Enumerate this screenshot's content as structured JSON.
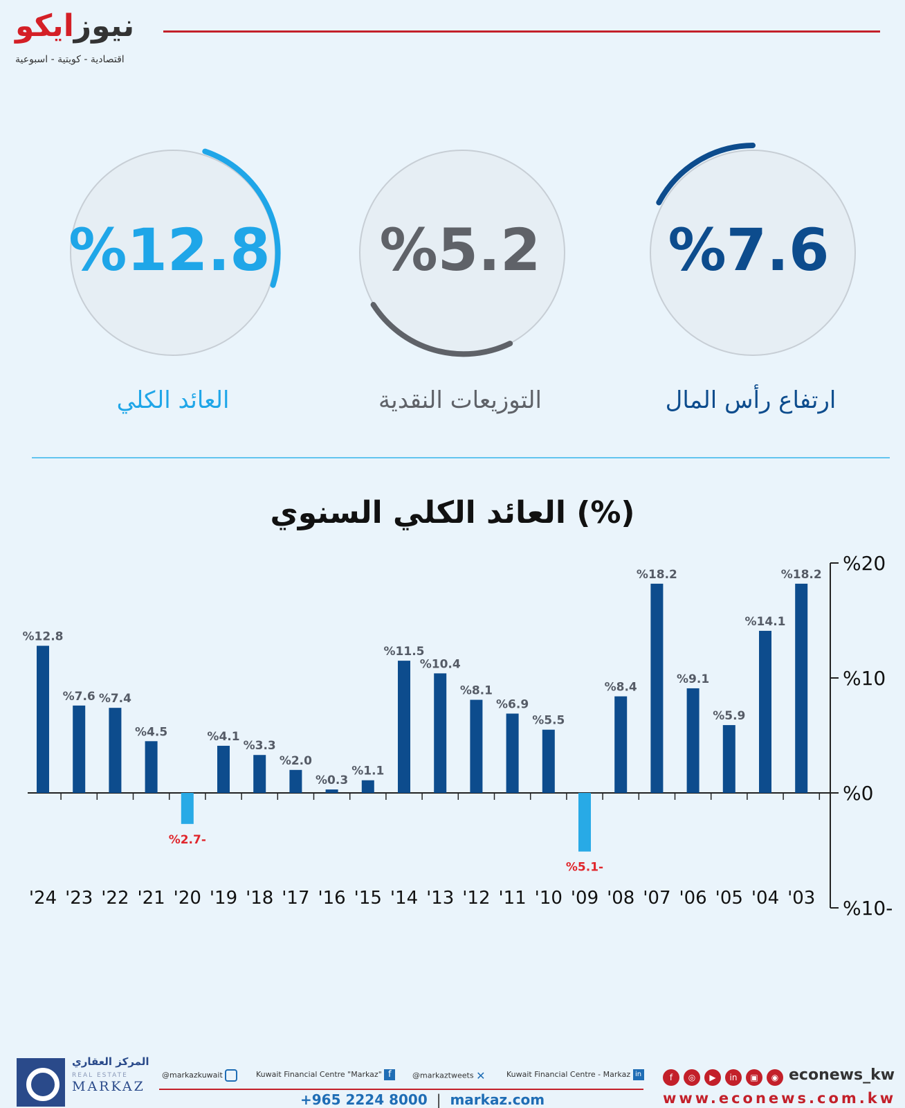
{
  "header": {
    "logo_part1": "ايكو",
    "logo_part2": "نيوز",
    "tagline": "اقتصادية - كويتية - اسبوعية"
  },
  "rings": [
    {
      "value_text": "%12.8",
      "label": "العائد الكلي",
      "color": "#1fa6e8",
      "fraction": 0.128
    },
    {
      "value_text": "%5.2",
      "label": "التوزيعات النقدية",
      "color": "#5f6268",
      "fraction": 0.052
    },
    {
      "value_text": "%7.6",
      "label": "ارتفاع رأس المال",
      "color": "#0d4c8d",
      "fraction": 0.076
    }
  ],
  "chart_data": {
    "type": "bar",
    "title": "العائد الكلي السنوي (%)",
    "categories": [
      "'24",
      "'23",
      "'22",
      "'21",
      "'20",
      "'19",
      "'18",
      "'17",
      "'16",
      "'15",
      "'14",
      "'13",
      "'12",
      "'11",
      "'10",
      "'09",
      "'08",
      "'07",
      "'06",
      "'05",
      "'04",
      "'03"
    ],
    "values": [
      12.8,
      7.6,
      7.4,
      4.5,
      -2.7,
      4.1,
      3.3,
      2.0,
      0.3,
      1.1,
      11.5,
      10.4,
      8.1,
      6.9,
      5.5,
      -5.1,
      8.4,
      18.2,
      9.1,
      5.9,
      14.1,
      18.2
    ],
    "data_labels": [
      "%12.8",
      "%7.6",
      "%7.4",
      "%4.5",
      "%2.7-",
      "%4.1",
      "%3.3",
      "%2.0",
      "%0.3",
      "%1.1",
      "%11.5",
      "%10.4",
      "%8.1",
      "%6.9",
      "%5.5",
      "%5.1-",
      "%8.4",
      "%18.2",
      "%9.1",
      "%5.9",
      "%14.1",
      "%18.2"
    ],
    "ylim": [
      -10,
      20
    ],
    "yticks": [
      "%20",
      "%10",
      "%0",
      "%10-"
    ],
    "colors": {
      "positive": "#0d4c8d",
      "negative": "#28aae6",
      "negative_label": "#e0262c",
      "label": "#555b66"
    }
  },
  "footer": {
    "markaz_ar": "المركز العقاري",
    "markaz_en_small": "REAL ESTATE",
    "markaz_en": "MARKAZ",
    "social": [
      {
        "text": "@markazkuwait",
        "icon": "instagram-icon"
      },
      {
        "text": "Kuwait Financial Centre \"Markaz\"",
        "icon": "facebook-icon"
      },
      {
        "text": "@markaztweets",
        "icon": "x-icon"
      },
      {
        "text": "Kuwait Financial Centre - Markaz",
        "icon": "linkedin-icon"
      }
    ],
    "phone": "+965 2224 8000",
    "separator": "|",
    "website": "markaz.com",
    "econews_handle": "econews_kw",
    "econews_url": "www.econews.com.kw",
    "econews_icons": [
      "f",
      "◎",
      "▶",
      "in",
      "▣",
      "◉"
    ]
  }
}
